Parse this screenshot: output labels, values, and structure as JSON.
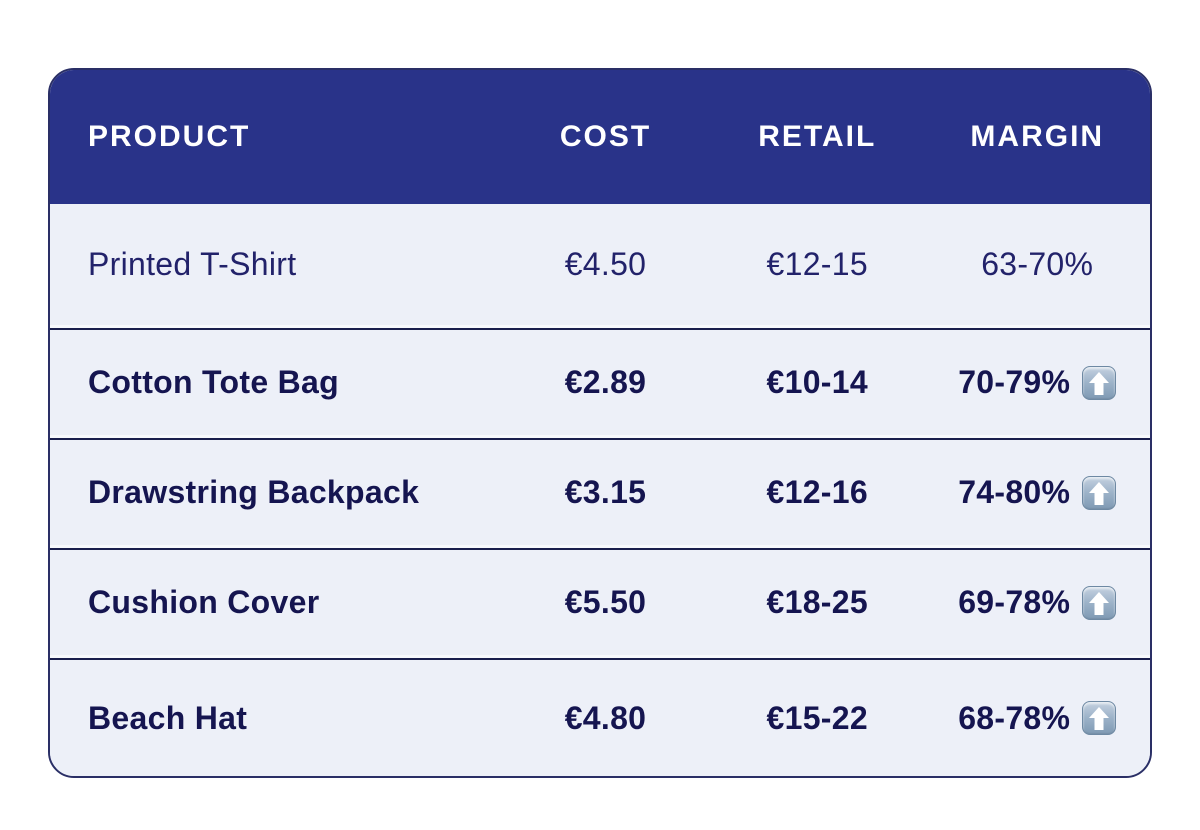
{
  "page": {
    "background": "#ffffff"
  },
  "colors": {
    "header_bg": "#293389",
    "body_bg": "#edf0f8",
    "text_regular": "#22226a",
    "text_bold": "#151550",
    "divider_line": "#1a1f4d",
    "card_border": "#2a2f66",
    "arrow_badge_top": "#c4d1e0",
    "arrow_badge_bottom": "#7f9ab4",
    "arrow_glyph": "#ffffff"
  },
  "table": {
    "columns": [
      {
        "id": "product",
        "label": "PRODUCT"
      },
      {
        "id": "cost",
        "label": "COST"
      },
      {
        "id": "retail",
        "label": "RETAIL"
      },
      {
        "id": "margin",
        "label": "MARGIN"
      }
    ],
    "rows": [
      {
        "product": "Printed T-Shirt",
        "cost": "€4.50",
        "retail": "€12-15",
        "margin": "63-70%",
        "emphasis": false,
        "trend_icon": null
      },
      {
        "product": "Cotton Tote Bag",
        "cost": "€2.89",
        "retail": "€10-14",
        "margin": "70-79%",
        "emphasis": true,
        "trend_icon": "up-arrow-button"
      },
      {
        "product": "Drawstring Backpack",
        "cost": "€3.15",
        "retail": "€12-16",
        "margin": "74-80%",
        "emphasis": true,
        "trend_icon": "up-arrow-button"
      },
      {
        "product": "Cushion Cover",
        "cost": "€5.50",
        "retail": "€18-25",
        "margin": "69-78%",
        "emphasis": true,
        "trend_icon": "up-arrow-button"
      },
      {
        "product": "Beach Hat",
        "cost": "€4.80",
        "retail": "€15-22",
        "margin": "68-78%",
        "emphasis": true,
        "trend_icon": "up-arrow-button"
      }
    ]
  },
  "chart_data": {
    "type": "table",
    "title": "",
    "columns": [
      "PRODUCT",
      "COST",
      "RETAIL",
      "MARGIN"
    ],
    "rows": [
      [
        "Printed T-Shirt",
        "€4.50",
        "€12-15",
        "63-70%"
      ],
      [
        "Cotton Tote Bag",
        "€2.89",
        "€10-14",
        "70-79% ⬆"
      ],
      [
        "Drawstring Backpack",
        "€3.15",
        "€12-16",
        "74-80% ⬆"
      ],
      [
        "Cushion Cover",
        "€5.50",
        "€18-25",
        "69-78% ⬆"
      ],
      [
        "Beach Hat",
        "€4.80",
        "€15-22",
        "68-78% ⬆"
      ]
    ],
    "notes": "Rows 2-5 are bold-emphasized and carry an up-arrow-button emoji indicating higher margin"
  }
}
